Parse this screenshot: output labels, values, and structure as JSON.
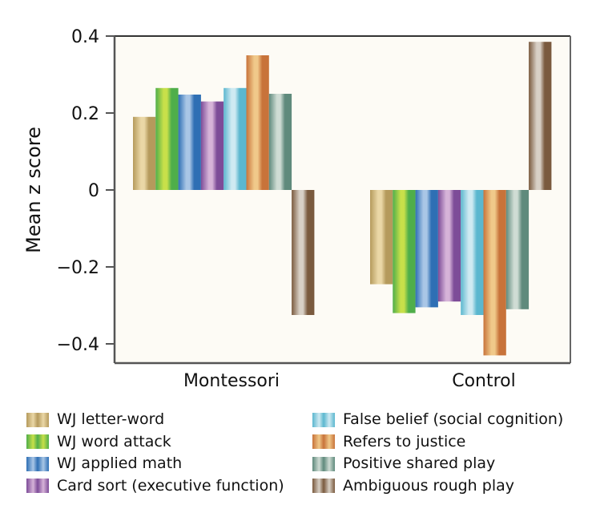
{
  "chart_data": {
    "type": "bar",
    "title": "",
    "xlabel": "",
    "ylabel": "Mean z score",
    "ylim": [
      -0.45,
      0.4
    ],
    "yticks": [
      0.4,
      0.2,
      0,
      -0.2,
      -0.4
    ],
    "ytick_labels": [
      "0.4",
      "0.2",
      "0",
      "−0.2",
      "−0.4"
    ],
    "grid": false,
    "legend_position": "bottom",
    "categories": [
      "Montessori",
      "Control"
    ],
    "series": [
      {
        "name": "WJ letter-word",
        "color": "#b59a5c",
        "highlight": "#ead7a6",
        "values": [
          0.19,
          -0.245
        ]
      },
      {
        "name": "WJ word attack",
        "color": "#4fae4a",
        "highlight": "#c8e04a",
        "values": [
          0.265,
          -0.32
        ]
      },
      {
        "name": "WJ applied math",
        "color": "#2e6fb4",
        "highlight": "#a9c6e6",
        "values": [
          0.248,
          -0.305
        ]
      },
      {
        "name": "Card sort (executive function)",
        "color": "#7d4c98",
        "highlight": "#d6b3d8",
        "values": [
          0.23,
          -0.29
        ]
      },
      {
        "name": "False belief (social cognition)",
        "color": "#5bb7cf",
        "highlight": "#cfeaf2",
        "values": [
          0.265,
          -0.325
        ]
      },
      {
        "name": "Refers to justice",
        "color": "#c8733a",
        "highlight": "#f0c98a",
        "values": [
          0.35,
          -0.43
        ]
      },
      {
        "name": "Positive shared play",
        "color": "#5f8a7c",
        "highlight": "#cfdcd4",
        "values": [
          0.25,
          -0.31
        ]
      },
      {
        "name": "Ambiguous rough play",
        "color": "#7a5a3e",
        "highlight": "#d8d0c6",
        "values": [
          -0.325,
          0.385
        ]
      }
    ]
  }
}
